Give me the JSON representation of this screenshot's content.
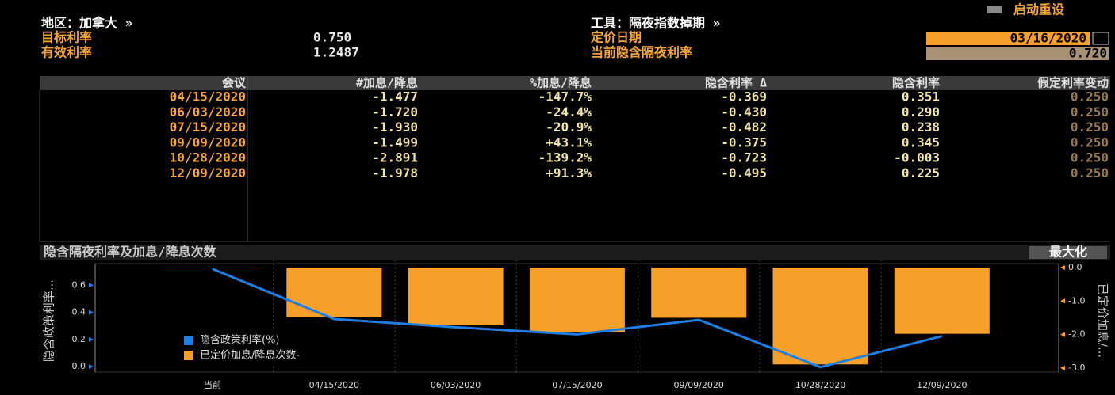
{
  "top_button": "启动重设",
  "header": {
    "region": "地区：加拿大 »",
    "instrument": "工具：隔夜指数掉期 »",
    "fields": [
      {
        "label": "目标利率",
        "value": "0.750"
      },
      {
        "label": "有效利率",
        "value": "1.2487"
      },
      {
        "label": "定价日期",
        "value": "03/16/2020"
      },
      {
        "label": "当前隐含隔夜利率",
        "value": "0.720"
      }
    ]
  },
  "table": {
    "columns": [
      "会议",
      "#加息/降息",
      "%加息/降息",
      "隐含利率 Δ",
      "隐含利率",
      "假定利率变动"
    ],
    "rows": [
      [
        "04/15/2020",
        "-1.477",
        "-147.7%",
        "-0.369",
        "0.351",
        "0.250"
      ],
      [
        "06/03/2020",
        "-1.720",
        "-24.4%",
        "-0.430",
        "0.290",
        "0.250"
      ],
      [
        "07/15/2020",
        "-1.930",
        "-20.9%",
        "-0.482",
        "0.238",
        "0.250"
      ],
      [
        "09/09/2020",
        "-1.499",
        "+43.1%",
        "-0.375",
        "0.345",
        "0.250"
      ],
      [
        "10/28/2020",
        "-2.891",
        "-139.2%",
        "-0.723",
        "-0.003",
        "0.250"
      ],
      [
        "12/09/2020",
        "-1.978",
        "+91.3%",
        "-0.495",
        "0.225",
        "0.250"
      ]
    ]
  },
  "chart": {
    "type": "combo",
    "title": "隐含隔夜利率及加息/降息次数",
    "button": "最大化",
    "y_label": "隐含政策利率...",
    "y2_label": "已定价加息/...",
    "categories": [
      "当前",
      "04/15/2020",
      "06/03/2020",
      "07/15/2020",
      "09/09/2020",
      "10/28/2020",
      "12/09/2020"
    ],
    "series": [
      {
        "name": "隐含政策利率(%)",
        "type": "line",
        "color": "#1e7fe6",
        "values": [
          0.72,
          0.351,
          0.29,
          0.238,
          0.345,
          -0.003,
          0.225
        ]
      },
      {
        "name": "已定价加息/降息次数-",
        "type": "bar",
        "axis": "y2",
        "color": "#f7a029",
        "values": [
          0,
          -1.477,
          -1.72,
          -1.93,
          -1.499,
          -2.891,
          -1.978
        ]
      }
    ],
    "ylim": [
      -0.04,
      0.73
    ],
    "yticks": [
      {
        "value": 0,
        "label": "0.0"
      },
      {
        "value": 0.2,
        "label": "0.2"
      },
      {
        "value": 0.4,
        "label": "0.4"
      },
      {
        "value": 0.6,
        "label": "0.6"
      }
    ],
    "y2lim": [
      -3.12,
      0
    ],
    "y2ticks": [
      {
        "value": 0,
        "label": "0.0"
      },
      {
        "value": -1,
        "label": "-1.0"
      },
      {
        "value": -2,
        "label": "-2.0"
      },
      {
        "value": -3,
        "label": "-3.0"
      }
    ]
  }
}
